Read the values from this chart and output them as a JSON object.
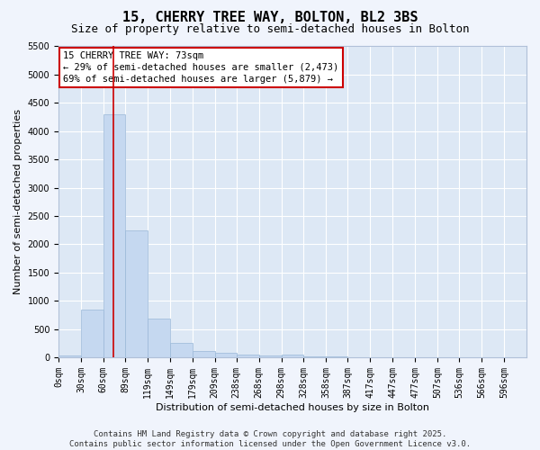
{
  "title": "15, CHERRY TREE WAY, BOLTON, BL2 3BS",
  "subtitle": "Size of property relative to semi-detached houses in Bolton",
  "xlabel": "Distribution of semi-detached houses by size in Bolton",
  "ylabel": "Number of semi-detached properties",
  "bar_color": "#c5d8f0",
  "bar_edge_color": "#9ab8d8",
  "background_color": "#dde8f5",
  "grid_color": "#ffffff",
  "bin_labels": [
    "0sqm",
    "30sqm",
    "60sqm",
    "89sqm",
    "119sqm",
    "149sqm",
    "179sqm",
    "209sqm",
    "238sqm",
    "268sqm",
    "298sqm",
    "328sqm",
    "358sqm",
    "387sqm",
    "417sqm",
    "447sqm",
    "477sqm",
    "507sqm",
    "536sqm",
    "566sqm",
    "596sqm"
  ],
  "bar_heights": [
    25,
    840,
    4300,
    2250,
    680,
    250,
    115,
    75,
    55,
    30,
    50,
    20,
    10,
    5,
    3,
    2,
    2,
    1,
    1,
    1,
    1
  ],
  "ylim": [
    0,
    5500
  ],
  "yticks": [
    0,
    500,
    1000,
    1500,
    2000,
    2500,
    3000,
    3500,
    4000,
    4500,
    5000,
    5500
  ],
  "red_line_color": "#cc0000",
  "annotation_title": "15 CHERRY TREE WAY: 73sqm",
  "annotation_line1": "← 29% of semi-detached houses are smaller (2,473)",
  "annotation_line2": "69% of semi-detached houses are larger (5,879) →",
  "annotation_box_color": "#ffffff",
  "annotation_box_edge": "#cc0000",
  "property_size": 73,
  "bin_starts": [
    0,
    30,
    60,
    89,
    119,
    149,
    179,
    209,
    238,
    268,
    298,
    328,
    358,
    387,
    417,
    447,
    477,
    507,
    536,
    566,
    596
  ],
  "footer_line1": "Contains HM Land Registry data © Crown copyright and database right 2025.",
  "footer_line2": "Contains public sector information licensed under the Open Government Licence v3.0.",
  "title_fontsize": 11,
  "subtitle_fontsize": 9,
  "axis_label_fontsize": 8,
  "tick_fontsize": 7,
  "annotation_fontsize": 7.5,
  "footer_fontsize": 6.5
}
